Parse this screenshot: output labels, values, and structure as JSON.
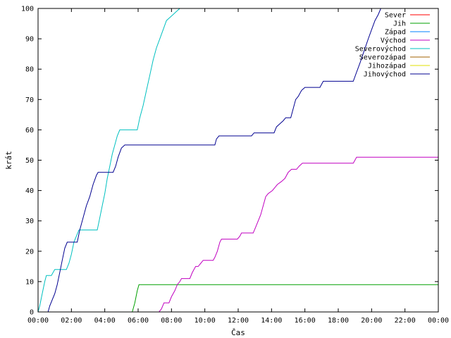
{
  "chart_data": {
    "type": "line",
    "title": "",
    "xlabel": "Čas",
    "ylabel": "krát",
    "xlim": [
      0,
      24
    ],
    "ylim": [
      0,
      100
    ],
    "x_tick_labels": [
      "00:00",
      "02:00",
      "04:00",
      "06:00",
      "08:00",
      "10:00",
      "12:00",
      "14:00",
      "16:00",
      "18:00",
      "20:00",
      "22:00",
      "00:00"
    ],
    "y_ticks": [
      0,
      10,
      20,
      30,
      40,
      50,
      60,
      70,
      80,
      90,
      100
    ],
    "grid": false,
    "legend_position": "top-right",
    "series": [
      {
        "name": "Sever",
        "color": "#ff0000",
        "points": []
      },
      {
        "name": "Jih",
        "color": "#00a000",
        "points": [
          [
            5.65,
            0
          ],
          [
            5.8,
            3
          ],
          [
            5.95,
            7
          ],
          [
            6.05,
            9
          ],
          [
            24,
            9
          ]
        ]
      },
      {
        "name": "Západ",
        "color": "#0080ff",
        "points": []
      },
      {
        "name": "Východ",
        "color": "#c000c0",
        "points": [
          [
            7.25,
            0
          ],
          [
            7.4,
            1
          ],
          [
            7.55,
            3
          ],
          [
            7.85,
            3
          ],
          [
            8.0,
            5
          ],
          [
            8.2,
            7
          ],
          [
            8.35,
            9
          ],
          [
            8.5,
            10
          ],
          [
            8.6,
            11
          ],
          [
            9.1,
            11
          ],
          [
            9.25,
            13
          ],
          [
            9.45,
            15
          ],
          [
            9.6,
            15
          ],
          [
            9.75,
            16
          ],
          [
            9.9,
            17
          ],
          [
            10.5,
            17
          ],
          [
            10.6,
            18
          ],
          [
            10.75,
            20
          ],
          [
            10.9,
            23
          ],
          [
            11.0,
            24
          ],
          [
            11.95,
            24
          ],
          [
            12.1,
            25
          ],
          [
            12.2,
            26
          ],
          [
            12.9,
            26
          ],
          [
            13.05,
            28
          ],
          [
            13.2,
            30
          ],
          [
            13.35,
            32
          ],
          [
            13.5,
            35
          ],
          [
            13.65,
            38
          ],
          [
            13.8,
            39
          ],
          [
            14.05,
            40
          ],
          [
            14.2,
            41
          ],
          [
            14.35,
            42
          ],
          [
            14.6,
            43
          ],
          [
            14.8,
            44
          ],
          [
            15.0,
            46
          ],
          [
            15.2,
            47
          ],
          [
            15.5,
            47
          ],
          [
            15.65,
            48
          ],
          [
            15.85,
            49
          ],
          [
            18.9,
            49
          ],
          [
            19.0,
            50
          ],
          [
            19.1,
            51
          ],
          [
            24,
            51
          ]
        ]
      },
      {
        "name": "Severovýchod",
        "color": "#00c0c0",
        "points": [
          [
            0.0,
            0
          ],
          [
            0.1,
            2
          ],
          [
            0.25,
            6
          ],
          [
            0.4,
            10
          ],
          [
            0.5,
            12
          ],
          [
            0.8,
            12
          ],
          [
            0.9,
            13
          ],
          [
            1.0,
            14
          ],
          [
            1.7,
            14
          ],
          [
            1.85,
            16
          ],
          [
            2.0,
            19
          ],
          [
            2.15,
            23
          ],
          [
            2.3,
            25
          ],
          [
            2.45,
            27
          ],
          [
            3.55,
            27
          ],
          [
            3.7,
            31
          ],
          [
            3.85,
            35
          ],
          [
            4.0,
            39
          ],
          [
            4.15,
            44
          ],
          [
            4.3,
            48
          ],
          [
            4.45,
            52
          ],
          [
            4.6,
            55
          ],
          [
            4.75,
            58
          ],
          [
            4.9,
            60
          ],
          [
            5.95,
            60
          ],
          [
            6.1,
            64
          ],
          [
            6.3,
            68
          ],
          [
            6.5,
            73
          ],
          [
            6.7,
            78
          ],
          [
            6.9,
            83
          ],
          [
            7.1,
            87
          ],
          [
            7.3,
            90
          ],
          [
            7.5,
            93
          ],
          [
            7.7,
            96
          ],
          [
            7.9,
            97
          ],
          [
            8.1,
            98
          ],
          [
            8.3,
            99
          ],
          [
            8.5,
            100
          ],
          [
            8.6,
            100
          ]
        ]
      },
      {
        "name": "Severozápad",
        "color": "#a06000",
        "points": []
      },
      {
        "name": "Jihozápad",
        "color": "#e0e000",
        "points": []
      },
      {
        "name": "Jihovýchod",
        "color": "#000090",
        "points": [
          [
            0.6,
            0
          ],
          [
            0.7,
            2
          ],
          [
            0.85,
            4
          ],
          [
            1.0,
            6
          ],
          [
            1.15,
            9
          ],
          [
            1.3,
            13
          ],
          [
            1.45,
            17
          ],
          [
            1.6,
            21
          ],
          [
            1.75,
            23
          ],
          [
            2.35,
            23
          ],
          [
            2.5,
            27
          ],
          [
            2.7,
            31
          ],
          [
            2.9,
            35
          ],
          [
            3.1,
            38
          ],
          [
            3.3,
            42
          ],
          [
            3.5,
            45
          ],
          [
            3.6,
            46
          ],
          [
            4.5,
            46
          ],
          [
            4.65,
            48
          ],
          [
            4.8,
            51
          ],
          [
            5.0,
            54
          ],
          [
            5.2,
            55
          ],
          [
            10.6,
            55
          ],
          [
            10.7,
            57
          ],
          [
            10.85,
            58
          ],
          [
            12.8,
            58
          ],
          [
            12.95,
            59
          ],
          [
            14.15,
            59
          ],
          [
            14.3,
            61
          ],
          [
            14.5,
            62
          ],
          [
            14.7,
            63
          ],
          [
            14.85,
            64
          ],
          [
            15.15,
            64
          ],
          [
            15.3,
            67
          ],
          [
            15.45,
            70
          ],
          [
            15.6,
            71
          ],
          [
            15.8,
            73
          ],
          [
            16.0,
            74
          ],
          [
            16.9,
            74
          ],
          [
            17.1,
            76
          ],
          [
            18.9,
            76
          ],
          [
            19.1,
            79
          ],
          [
            19.3,
            82
          ],
          [
            19.55,
            86
          ],
          [
            19.8,
            90
          ],
          [
            20.0,
            93
          ],
          [
            20.2,
            96
          ],
          [
            20.4,
            98
          ],
          [
            20.55,
            100
          ],
          [
            20.7,
            100
          ]
        ]
      }
    ]
  }
}
